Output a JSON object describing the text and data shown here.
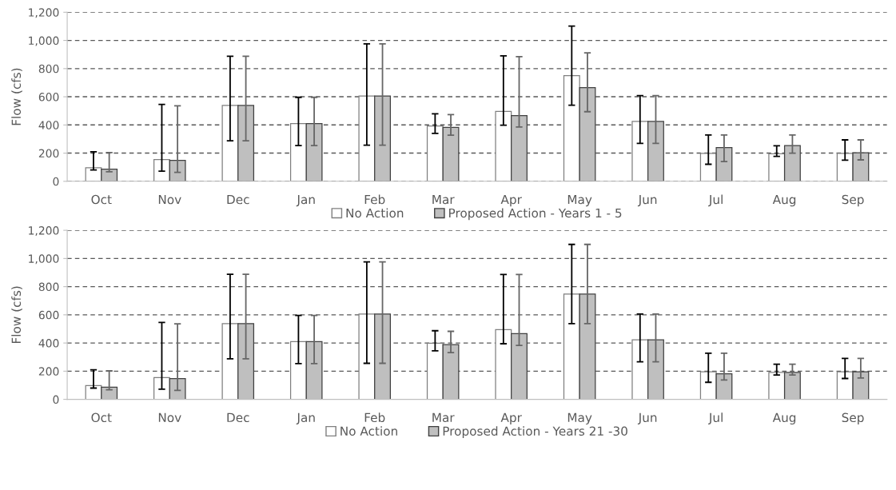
{
  "chart_data": [
    {
      "type": "bar",
      "ylabel": "Flow (cfs)",
      "categories": [
        "Oct",
        "Nov",
        "Dec",
        "Jan",
        "Feb",
        "Mar",
        "Apr",
        "May",
        "Jun",
        "Jul",
        "Aug",
        "Sep"
      ],
      "ylim": [
        0,
        1200
      ],
      "yticks": [
        {
          "value": 0,
          "label": "0"
        },
        {
          "value": 200,
          "label": "200"
        },
        {
          "value": 400,
          "label": "400"
        },
        {
          "value": 600,
          "label": "600"
        },
        {
          "value": 800,
          "label": "800"
        },
        {
          "value": 1000,
          "label": "1,000"
        },
        {
          "value": 1200,
          "label": "1,200"
        }
      ],
      "grid": "y",
      "legend": "bottom",
      "series": [
        {
          "name": "No Action",
          "color": "#ffffff",
          "values": [
            96,
            154,
            538,
            410,
            606,
            392,
            496,
            750,
            425,
            198,
            196,
            198
          ],
          "errors": [
            [
              80,
              210
            ],
            [
              72,
              546
            ],
            [
              288,
              888
            ],
            [
              254,
              596
            ],
            [
              256,
              976
            ],
            [
              340,
              479
            ],
            [
              398,
              890
            ],
            [
              540,
              1102
            ],
            [
              269,
              608
            ],
            [
              121,
              329
            ],
            [
              177,
              252
            ],
            [
              150,
              294
            ]
          ]
        },
        {
          "name": "Proposed Action - Years 1 - 5",
          "color": "#bfbfbf",
          "values": [
            86,
            148,
            538,
            410,
            606,
            383,
            467,
            665,
            425,
            240,
            254,
            202
          ],
          "errors": [
            [
              68,
              204
            ],
            [
              64,
              536
            ],
            [
              288,
              888
            ],
            [
              254,
              596
            ],
            [
              256,
              976
            ],
            [
              327,
              473
            ],
            [
              385,
              885
            ],
            [
              494,
              912
            ],
            [
              269,
              608
            ],
            [
              140,
              329
            ],
            [
              200,
              329
            ],
            [
              152,
              294
            ]
          ]
        }
      ]
    },
    {
      "type": "bar",
      "ylabel": "Flow (cfs)",
      "categories": [
        "Oct",
        "Nov",
        "Dec",
        "Jan",
        "Feb",
        "Mar",
        "Apr",
        "May",
        "Jun",
        "Jul",
        "Aug",
        "Sep"
      ],
      "ylim": [
        0,
        1200
      ],
      "yticks": [
        {
          "value": 0,
          "label": "0"
        },
        {
          "value": 200,
          "label": "200"
        },
        {
          "value": 400,
          "label": "400"
        },
        {
          "value": 600,
          "label": "600"
        },
        {
          "value": 800,
          "label": "800"
        },
        {
          "value": 1000,
          "label": "1,000"
        },
        {
          "value": 1200,
          "label": "1,200"
        }
      ],
      "grid": "y",
      "legend": "bottom",
      "series": [
        {
          "name": "No Action",
          "color": "#ffffff",
          "values": [
            98,
            154,
            538,
            410,
            606,
            398,
            495,
            747,
            422,
            196,
            191,
            196
          ],
          "errors": [
            [
              80,
              210
            ],
            [
              72,
              546
            ],
            [
              288,
              888
            ],
            [
              254,
              596
            ],
            [
              256,
              976
            ],
            [
              345,
              487
            ],
            [
              395,
              886
            ],
            [
              537,
              1100
            ],
            [
              266,
              605
            ],
            [
              121,
              327
            ],
            [
              173,
              250
            ],
            [
              148,
              291
            ]
          ]
        },
        {
          "name": "Proposed Action - Years 21 -30",
          "color": "#bfbfbf",
          "values": [
            86,
            148,
            538,
            410,
            606,
            389,
            466,
            747,
            422,
            181,
            191,
            196
          ],
          "errors": [
            [
              68,
              202
            ],
            [
              64,
              536
            ],
            [
              288,
              888
            ],
            [
              254,
              596
            ],
            [
              256,
              976
            ],
            [
              332,
              483
            ],
            [
              383,
              886
            ],
            [
              537,
              1100
            ],
            [
              266,
              605
            ],
            [
              137,
              327
            ],
            [
              173,
              250
            ],
            [
              152,
              291
            ]
          ]
        }
      ]
    }
  ]
}
